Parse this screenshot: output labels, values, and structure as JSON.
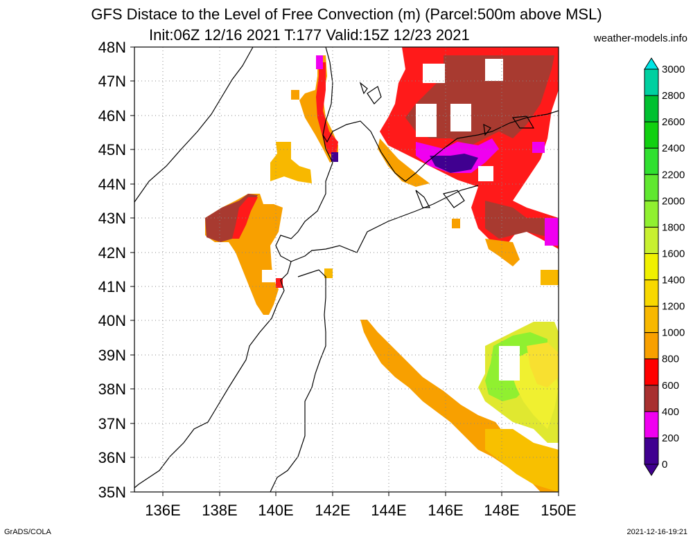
{
  "title_line1": "GFS Distace to the Level of Free Convection (m) (Parcel:500m above MSL)",
  "title_line2": "Init:06Z 12/16 2021 T:177 Valid:15Z 12/23 2021",
  "site": "weather-models.info",
  "footer_left": "GrADS/COLA",
  "footer_right": "2021-12-16-19:21",
  "lat_labels": [
    "48N",
    "47N",
    "46N",
    "45N",
    "44N",
    "43N",
    "42N",
    "41N",
    "40N",
    "39N",
    "38N",
    "37N",
    "36N",
    "35N"
  ],
  "lon_labels": [
    "136E",
    "138E",
    "140E",
    "142E",
    "144E",
    "146E",
    "148E",
    "150E"
  ],
  "colorbar": {
    "labels": [
      "3000",
      "2800",
      "2600",
      "2400",
      "2200",
      "2000",
      "1800",
      "1600",
      "1400",
      "1200",
      "1000",
      "800",
      "600",
      "400",
      "200",
      "0"
    ],
    "colors": [
      "#00e5e5",
      "#00d0a0",
      "#00c030",
      "#10d010",
      "#30e030",
      "#60e830",
      "#90f030",
      "#c8f030",
      "#f0f000",
      "#f8d800",
      "#f8b800",
      "#f8a000",
      "#ff0000",
      "#a83030",
      "#f000f0",
      "#400090"
    ]
  }
}
